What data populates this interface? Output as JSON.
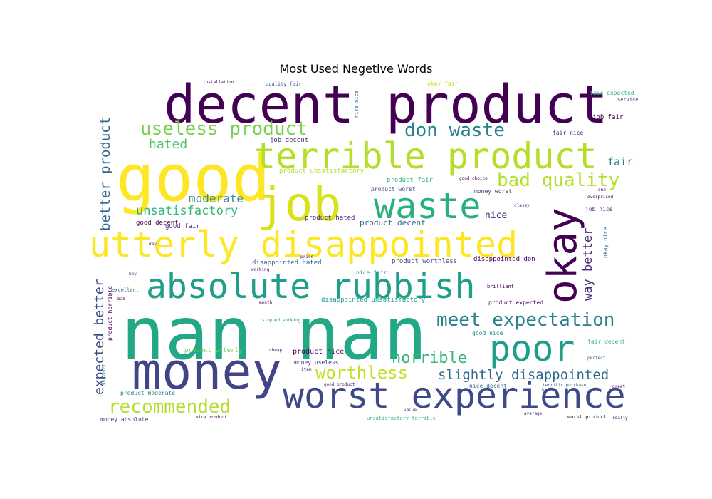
{
  "title": "Most Used Negetive Words",
  "colors": {
    "yellow": "#fde725",
    "lime": "#b5de2b",
    "green": "#6ece58",
    "teal_green": "#35b779",
    "teal": "#1f9e89",
    "cyan": "#26828e",
    "blue": "#31688e",
    "indigo": "#3e4989",
    "purple": "#482878",
    "dark_purple": "#440154"
  },
  "words": [
    {
      "text": "decent product",
      "size": 74,
      "color": "#440154"
    },
    {
      "text": "good",
      "size": 90,
      "color": "#fde725"
    },
    {
      "text": "job",
      "size": 66,
      "color": "#d8e219"
    },
    {
      "text": "nan nan",
      "size": 102,
      "color": "#22a884"
    },
    {
      "text": "money",
      "size": 70,
      "color": "#414487"
    },
    {
      "text": "utterly disappointed",
      "size": 50,
      "color": "#fde725"
    },
    {
      "text": "terrible product",
      "size": 50,
      "color": "#b5de2b"
    },
    {
      "text": "absolute rubbish",
      "size": 48,
      "color": "#1f9e89"
    },
    {
      "text": "waste",
      "size": 50,
      "color": "#2ab07f"
    },
    {
      "text": "okay",
      "size": 56,
      "color": "#440154"
    },
    {
      "text": "poor",
      "size": 50,
      "color": "#1f9e89"
    },
    {
      "text": "worst experience",
      "size": 50,
      "color": "#3e4989"
    },
    {
      "text": "useless product",
      "size": 26,
      "color": "#7ad151"
    },
    {
      "text": "don waste",
      "size": 26,
      "color": "#26828e"
    },
    {
      "text": "bad quality",
      "size": 26,
      "color": "#b5de2b"
    },
    {
      "text": "meet expectation",
      "size": 26,
      "color": "#26828e"
    },
    {
      "text": "horrible",
      "size": 22,
      "color": "#35b779"
    },
    {
      "text": "worthless",
      "size": 24,
      "color": "#c2df23"
    },
    {
      "text": "recommended",
      "size": 26,
      "color": "#b5de2b"
    },
    {
      "text": "slightly disappointed",
      "size": 19,
      "color": "#31688e"
    },
    {
      "text": "hated",
      "size": 18,
      "color": "#52c569"
    },
    {
      "text": "moderate",
      "size": 16,
      "color": "#3e8a8c"
    },
    {
      "text": "unsatisfactory",
      "size": 17,
      "color": "#35b779"
    },
    {
      "text": "better product",
      "size": 19,
      "color": "#31688e"
    },
    {
      "text": "expected better",
      "size": 18,
      "color": "#3e4989"
    },
    {
      "text": "way better",
      "size": 17,
      "color": "#482878"
    },
    {
      "text": "fair",
      "size": 15,
      "color": "#2a788e"
    },
    {
      "text": "nice",
      "size": 13,
      "color": "#482878"
    },
    {
      "text": "product decent",
      "size": 11,
      "color": "#31688e"
    },
    {
      "text": "product hated",
      "size": 9,
      "color": "#482878"
    },
    {
      "text": "good decent",
      "size": 9,
      "color": "#440154"
    },
    {
      "text": "good fair",
      "size": 9,
      "color": "#482878"
    },
    {
      "text": "job decent",
      "size": 9,
      "color": "#482878"
    },
    {
      "text": "job fair",
      "size": 9,
      "color": "#440154"
    },
    {
      "text": "fair nice",
      "size": 8,
      "color": "#482878"
    },
    {
      "text": "fair expected",
      "size": 8,
      "color": "#35b779"
    },
    {
      "text": "service",
      "size": 7,
      "color": "#414487"
    },
    {
      "text": "product fair",
      "size": 9,
      "color": "#35b779"
    },
    {
      "text": "product unsatisfactory",
      "size": 9,
      "color": "#b5de2b"
    },
    {
      "text": "product worst",
      "size": 8,
      "color": "#414487"
    },
    {
      "text": "money worst",
      "size": 8,
      "color": "#482878"
    },
    {
      "text": "job nice",
      "size": 8,
      "color": "#482878"
    },
    {
      "text": "okay nice",
      "size": 8,
      "color": "#31688e"
    },
    {
      "text": "disappointed hated",
      "size": 9,
      "color": "#31688e"
    },
    {
      "text": "disappointed don",
      "size": 9,
      "color": "#440154"
    },
    {
      "text": "product worthless",
      "size": 9,
      "color": "#414487"
    },
    {
      "text": "nice fair",
      "size": 8,
      "color": "#1f9e89"
    },
    {
      "text": "disappointed unsatisfactory",
      "size": 9,
      "color": "#1f9e89"
    },
    {
      "text": "product expected",
      "size": 8,
      "color": "#440154"
    },
    {
      "text": "good nice",
      "size": 8,
      "color": "#26828e"
    },
    {
      "text": "fair decent",
      "size": 8,
      "color": "#35b779"
    },
    {
      "text": "product utterly",
      "size": 9,
      "color": "#6ece58"
    },
    {
      "text": "product nice",
      "size": 10,
      "color": "#440154"
    },
    {
      "text": "money useless",
      "size": 8,
      "color": "#414487"
    },
    {
      "text": "product horrible",
      "size": 8,
      "color": "#440154"
    },
    {
      "text": "product moderate",
      "size": 8,
      "color": "#26828e"
    },
    {
      "text": "money absolute",
      "size": 8,
      "color": "#414487"
    },
    {
      "text": "nice decent",
      "size": 8,
      "color": "#31688e"
    },
    {
      "text": "unsatisfactory terrible",
      "size": 7,
      "color": "#35b779"
    },
    {
      "text": "worst product",
      "size": 7,
      "color": "#440154"
    },
    {
      "text": "brilliant",
      "size": 7,
      "color": "#440154"
    },
    {
      "text": "excellent",
      "size": 7,
      "color": "#31688e"
    },
    {
      "text": "quality fair",
      "size": 7,
      "color": "#3e4989"
    },
    {
      "text": "okay fair",
      "size": 8,
      "color": "#c2df23"
    },
    {
      "text": "good choice",
      "size": 6,
      "color": "#440154"
    },
    {
      "text": "overpriced",
      "size": 6,
      "color": "#440154"
    },
    {
      "text": "terrific purchase",
      "size": 6,
      "color": "#31688e"
    },
    {
      "text": "good product",
      "size": 6,
      "color": "#482878"
    },
    {
      "text": "nice product",
      "size": 6,
      "color": "#440154"
    },
    {
      "text": "stopped working",
      "size": 6,
      "color": "#1f9e89"
    },
    {
      "text": "installation",
      "size": 6,
      "color": "#440154"
    },
    {
      "text": "nice nice",
      "size": 7,
      "color": "#31688e"
    },
    {
      "text": "day",
      "size": 6,
      "color": "#482878"
    },
    {
      "text": "bad",
      "size": 6,
      "color": "#440154"
    },
    {
      "text": "boy",
      "size": 6,
      "color": "#482878"
    },
    {
      "text": "month",
      "size": 6,
      "color": "#440154"
    },
    {
      "text": "average",
      "size": 6,
      "color": "#482878"
    },
    {
      "text": "perfect",
      "size": 6,
      "color": "#31688e"
    },
    {
      "text": "really",
      "size": 6,
      "color": "#440154"
    },
    {
      "text": "great",
      "size": 6,
      "color": "#440154"
    },
    {
      "text": "best",
      "size": 6,
      "color": "#3e4989"
    },
    {
      "text": "value",
      "size": 6,
      "color": "#482878"
    },
    {
      "text": "item",
      "size": 6,
      "color": "#440154"
    },
    {
      "text": "cheap",
      "size": 6,
      "color": "#482878"
    },
    {
      "text": "delivery",
      "size": 6,
      "color": "#26828e"
    },
    {
      "text": "price",
      "size": 6,
      "color": "#482878"
    },
    {
      "text": "working",
      "size": 6,
      "color": "#440154"
    },
    {
      "text": "classy",
      "size": 6,
      "color": "#482878"
    },
    {
      "text": "one",
      "size": 6,
      "color": "#440154"
    }
  ]
}
